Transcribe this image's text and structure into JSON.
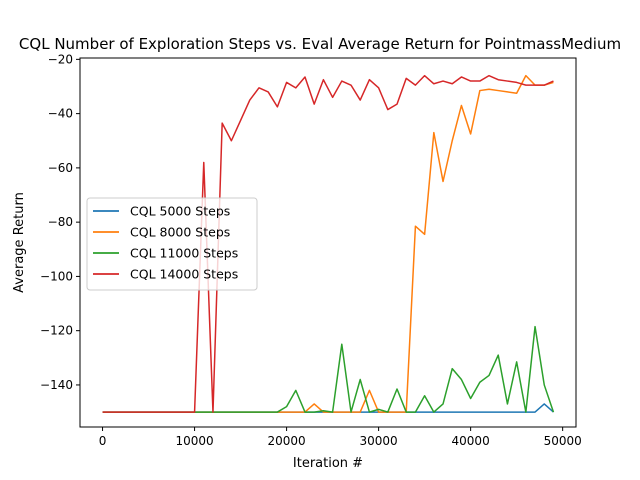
{
  "chart_data": {
    "type": "line",
    "title": "CQL Number of Exploration Steps vs. Eval Average Return for PointmassMedium",
    "xlabel": "Iteration #",
    "ylabel": "Average Return",
    "xlim": [
      -2450,
      51450
    ],
    "ylim": [
      -155.5,
      -19.5
    ],
    "xticks": [
      0,
      10000,
      20000,
      30000,
      40000,
      50000
    ],
    "yticks": [
      -140,
      -120,
      -100,
      -80,
      -60,
      -40,
      -20
    ],
    "grid": false,
    "legend_position": "center-left",
    "x": [
      0,
      1000,
      2000,
      3000,
      4000,
      5000,
      6000,
      7000,
      8000,
      9000,
      10000,
      11000,
      12000,
      13000,
      14000,
      15000,
      16000,
      17000,
      18000,
      19000,
      20000,
      21000,
      22000,
      23000,
      24000,
      25000,
      26000,
      27000,
      28000,
      29000,
      30000,
      31000,
      32000,
      33000,
      34000,
      35000,
      36000,
      37000,
      38000,
      39000,
      40000,
      41000,
      42000,
      43000,
      44000,
      45000,
      46000,
      47000,
      48000,
      49000
    ],
    "series": [
      {
        "name": "CQL 5000 Steps",
        "color": "#1f77b4",
        "values": [
          -150,
          -150,
          -150,
          -150,
          -150,
          -150,
          -150,
          -150,
          -150,
          -150,
          -150,
          -150,
          -150,
          -150,
          -150,
          -150,
          -150,
          -150,
          -150,
          -150,
          -150,
          -150,
          -150,
          -150,
          -150,
          -150,
          -150,
          -150,
          -150,
          -150,
          -150,
          -150,
          -150,
          -150,
          -150,
          -150,
          -150,
          -150,
          -150,
          -150,
          -150,
          -150,
          -150,
          -150,
          -150,
          -150,
          -150,
          -150,
          -147,
          -150
        ]
      },
      {
        "name": "CQL 8000 Steps",
        "color": "#ff7f0e",
        "values": [
          -150,
          -150,
          -150,
          -150,
          -150,
          -150,
          -150,
          -150,
          -150,
          -150,
          -150,
          -150,
          -150,
          -150,
          -150,
          -150,
          -150,
          -150,
          -150,
          -150,
          -150,
          -150,
          -150,
          -147,
          -150,
          -150,
          -150,
          -150,
          -150,
          -142,
          -150,
          -150,
          -150,
          -150,
          -81.5,
          -84.5,
          -47,
          -65,
          -50,
          -37,
          -47.5,
          -31.5,
          -31,
          -31.5,
          -32,
          -32.5,
          -26,
          -29.5,
          -29.5,
          -28.5
        ]
      },
      {
        "name": "CQL 11000 Steps",
        "color": "#2ca02c",
        "values": [
          -150,
          -150,
          -150,
          -150,
          -150,
          -150,
          -150,
          -150,
          -150,
          -150,
          -150,
          -150,
          -150,
          -150,
          -150,
          -150,
          -150,
          -150,
          -150,
          -150,
          -148,
          -142,
          -150,
          -150,
          -149.5,
          -150,
          -125,
          -150,
          -138,
          -150,
          -149,
          -150,
          -141.5,
          -150,
          -150,
          -144,
          -150,
          -147,
          -134,
          -138,
          -145,
          -139,
          -136.5,
          -129,
          -147,
          -131.5,
          -150,
          -118.5,
          -140,
          -150
        ]
      },
      {
        "name": "CQL 14000 Steps",
        "color": "#d62728",
        "values": [
          -150,
          -150,
          -150,
          -150,
          -150,
          -150,
          -150,
          -150,
          -150,
          -150,
          -150,
          -58,
          -150,
          -43.5,
          -50,
          -42.5,
          -35,
          -30.5,
          -32,
          -37.5,
          -28.5,
          -30.5,
          -26.5,
          -36.5,
          -27.5,
          -34,
          -28,
          -29.5,
          -35,
          -27.5,
          -30.5,
          -38.5,
          -36.5,
          -27,
          -29.5,
          -26,
          -29,
          -28,
          -29,
          -26.5,
          -28,
          -28,
          -26,
          -27.5,
          -28,
          -28.5,
          -29.5,
          -29.5,
          -29.5,
          -28
        ]
      }
    ]
  }
}
